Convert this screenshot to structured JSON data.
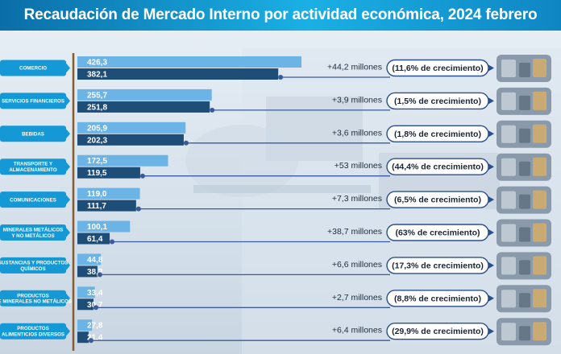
{
  "header": {
    "title": "Recaudación de Mercado Interno por actividad económica, 2024 febrero"
  },
  "chart_data": {
    "type": "bar",
    "title": "Recaudación de Mercado Interno por actividad económica, 2024 febrero",
    "categories": [
      [
        "COMERCIO"
      ],
      [
        "SERVICIOS FINANCIEROS"
      ],
      [
        "BEBIDAS"
      ],
      [
        "TRANSPORTE Y",
        "ALMACENAMIENTO"
      ],
      [
        "COMUNICACIONES"
      ],
      [
        "MINERALES METÁLICOS",
        "Y NO METÁLICOS"
      ],
      [
        "SUSTANCIAS Y PRODUCTOS",
        "QUÍMICOS"
      ],
      [
        "PRODUCTOS",
        "DE MINERALES NO METÁLICOS"
      ],
      [
        "PRODUCTOS",
        "ALIMENTICIOS DIVERSOS"
      ]
    ],
    "series": [
      {
        "values": [
          426.3,
          255.7,
          205.9,
          172.5,
          119.0,
          100.1,
          44.8,
          33.4,
          27.8
        ],
        "labels": [
          "426,3",
          "255,7",
          "205,9",
          "172,5",
          "119,0",
          "100,1",
          "44,8",
          "33,4",
          "27,8"
        ]
      },
      {
        "values": [
          382.1,
          251.8,
          202.3,
          119.5,
          111.7,
          61.4,
          38.2,
          30.7,
          21.4
        ],
        "labels": [
          "382,1",
          "251,8",
          "202,3",
          "119,5",
          "111,7",
          "61,4",
          "38,2",
          "30,7",
          "21,4"
        ]
      }
    ],
    "differences": [
      "+44,2 millones",
      "+3,9 millones",
      "+3,6 millones",
      "+53 millones",
      "+7,3 millones",
      "+38,7 millones",
      "+6,6 millones",
      "+2,7 millones",
      "+6,4 millones"
    ],
    "growth": [
      "(11,6% de crecimiento)",
      "(1,5% de crecimiento)",
      "(1,8% de crecimiento)",
      "(44,4% de crecimiento)",
      "(6,5% de crecimiento)",
      "(63% de crecimiento)",
      "(17,3% de crecimiento)",
      "(8,8% de crecimiento)",
      "(29,9% de crecimiento)"
    ],
    "xlim": [
      0,
      426.3
    ],
    "grid": false,
    "legend": "none"
  },
  "photos": [
    "store-shelves-photo",
    "finance-documents-photo",
    "bottles-photo",
    "trucks-photo",
    "telecom-network-photo",
    "mining-rocks-photo",
    "chemical-bottles-photo",
    "construction-materials-photo",
    "food-products-photo"
  ],
  "colors": {
    "header": "#1a9fd8",
    "bar_current": "#6db4e6",
    "bar_previous": "#1e4d78",
    "category_pill": "#1499d6",
    "connector": "#3a5a9a",
    "axis": "#8a5a2b",
    "growth_border": "#2a4f8a"
  }
}
